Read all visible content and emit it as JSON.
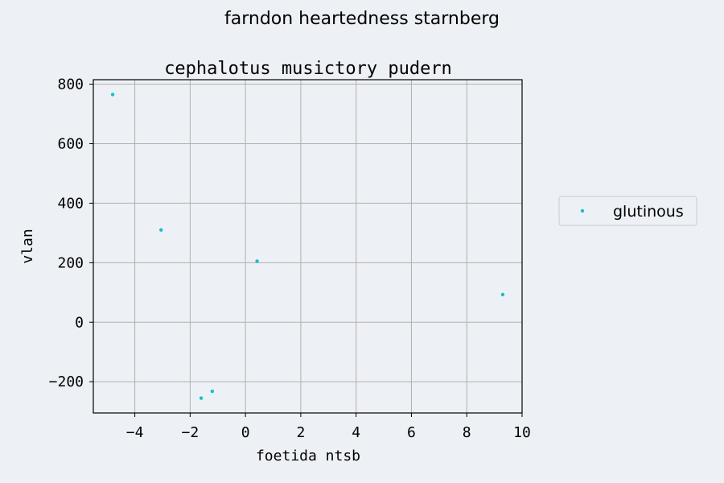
{
  "figure_title": "farndon heartedness starnberg",
  "chart_data": {
    "type": "scatter",
    "title": "cephalotus musictory pudern",
    "xlabel": "foetida ntsb",
    "ylabel": "vlan",
    "xlim": [
      -5.5,
      10.0
    ],
    "ylim": [
      -305,
      815
    ],
    "xticks": [
      -4,
      -2,
      0,
      2,
      4,
      6,
      8,
      10
    ],
    "xtick_labels": [
      "−4",
      "−2",
      "0",
      "2",
      "4",
      "6",
      "8",
      "10"
    ],
    "yticks": [
      -200,
      0,
      200,
      400,
      600,
      800
    ],
    "ytick_labels": [
      "−200",
      "0",
      "200",
      "400",
      "600",
      "800"
    ],
    "grid": true,
    "legend_position": "outside-right",
    "series": [
      {
        "name": "glutinous",
        "color": "#17becf",
        "points": [
          {
            "x": -4.8,
            "y": 765
          },
          {
            "x": -3.05,
            "y": 310
          },
          {
            "x": -1.6,
            "y": -255
          },
          {
            "x": -1.2,
            "y": -232
          },
          {
            "x": 0.42,
            "y": 205
          },
          {
            "x": 9.3,
            "y": 93
          }
        ]
      }
    ]
  }
}
